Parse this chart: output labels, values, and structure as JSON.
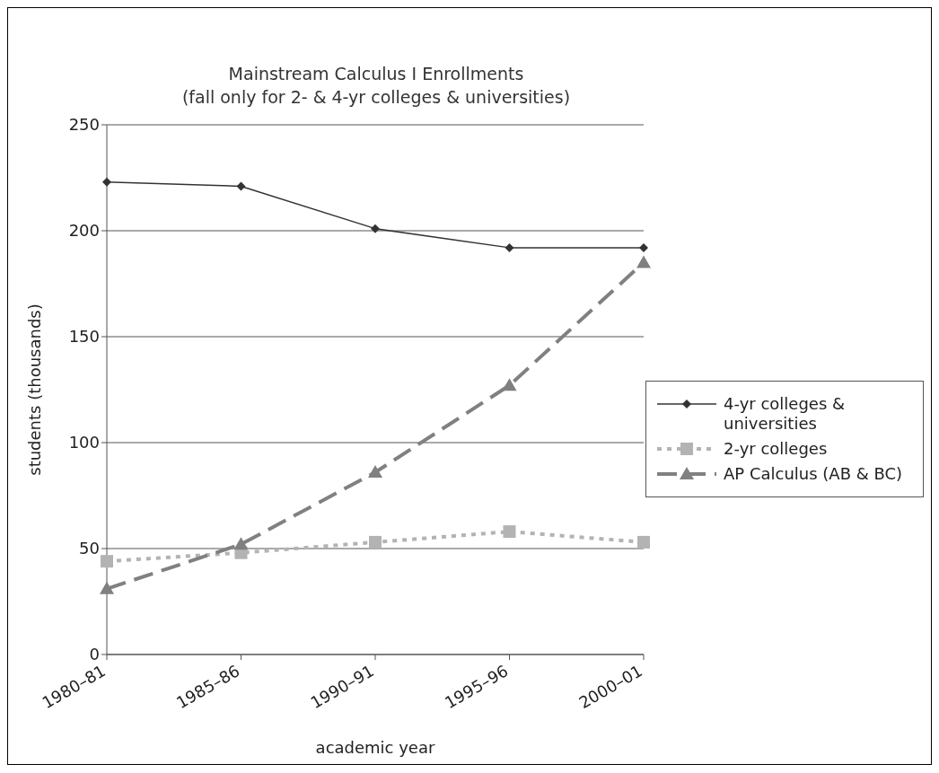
{
  "chart_data": {
    "type": "line",
    "title": "Mainstream Calculus I Enrollments",
    "subtitle": "(fall only for 2- & 4-yr colleges & universities)",
    "xlabel": "academic year",
    "ylabel": "students (thousands)",
    "categories": [
      "1980–81",
      "1985–86",
      "1990–91",
      "1995–96",
      "2000–01"
    ],
    "series": [
      {
        "name": "4-yr colleges & universities",
        "color": "#333333",
        "values": [
          223,
          221,
          201,
          192,
          192
        ],
        "marker": "diamond",
        "line_style": "solid"
      },
      {
        "name": "2-yr colleges",
        "color": "#b3b3b3",
        "values": [
          44,
          48,
          53,
          58,
          53
        ],
        "marker": "square",
        "line_style": "dotted"
      },
      {
        "name": "AP Calculus (AB & BC)",
        "color": "#808080",
        "values": [
          31,
          52,
          86,
          127,
          185
        ],
        "marker": "triangle",
        "line_style": "dashed"
      }
    ],
    "ylim": [
      0,
      250
    ],
    "yticks": [
      0,
      50,
      100,
      150,
      200,
      250
    ],
    "grid": "y",
    "legend": "right"
  }
}
